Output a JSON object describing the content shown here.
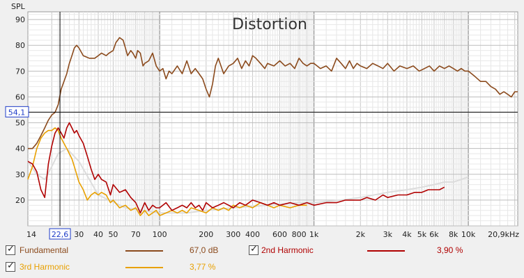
{
  "chart_data": {
    "type": "line",
    "title": "Distortion",
    "ylabel": "SPL",
    "xscale": "log",
    "xlim": [
      14,
      20900
    ],
    "ylim": [
      10,
      93
    ],
    "xticks": [
      {
        "v": 14,
        "label": "14"
      },
      {
        "v": 30,
        "label": "30"
      },
      {
        "v": 40,
        "label": "40"
      },
      {
        "v": 50,
        "label": "50"
      },
      {
        "v": 70,
        "label": "70"
      },
      {
        "v": 100,
        "label": "100"
      },
      {
        "v": 200,
        "label": "200"
      },
      {
        "v": 300,
        "label": "300"
      },
      {
        "v": 400,
        "label": "400"
      },
      {
        "v": 600,
        "label": "600"
      },
      {
        "v": 800,
        "label": "800"
      },
      {
        "v": 1000,
        "label": "1k"
      },
      {
        "v": 2000,
        "label": "2k"
      },
      {
        "v": 3000,
        "label": "3k"
      },
      {
        "v": 4000,
        "label": "4k"
      },
      {
        "v": 5000,
        "label": "5k"
      },
      {
        "v": 6000,
        "label": "6k"
      },
      {
        "v": 8000,
        "label": "8k"
      },
      {
        "v": 10000,
        "label": "10k"
      },
      {
        "v": 20900,
        "label": "20,9kHz"
      }
    ],
    "yticks": [
      20,
      30,
      40,
      50,
      60,
      70,
      80,
      90
    ],
    "cursor": {
      "x": 22.6,
      "y": 54.1,
      "x_label": "22,6",
      "y_label": "54,1"
    },
    "grid": true,
    "series": [
      {
        "name": "Fundamental",
        "color": "#8b4a1c",
        "x": [
          14,
          15,
          16,
          17,
          18,
          19,
          20,
          21,
          22,
          23,
          25,
          26,
          27,
          28,
          29,
          30,
          32,
          35,
          38,
          40,
          42,
          45,
          47,
          50,
          52,
          55,
          58,
          60,
          62,
          65,
          67,
          70,
          72,
          75,
          78,
          80,
          85,
          90,
          95,
          100,
          105,
          110,
          115,
          120,
          130,
          140,
          150,
          160,
          170,
          180,
          190,
          200,
          210,
          220,
          230,
          240,
          260,
          280,
          300,
          320,
          340,
          360,
          380,
          400,
          420,
          450,
          480,
          500,
          550,
          600,
          650,
          700,
          750,
          800,
          850,
          900,
          950,
          1000,
          1100,
          1200,
          1300,
          1400,
          1500,
          1600,
          1700,
          1800,
          1900,
          2000,
          2200,
          2400,
          2600,
          2800,
          3000,
          3300,
          3600,
          4000,
          4400,
          4800,
          5200,
          5600,
          6000,
          6500,
          7000,
          7500,
          8000,
          8500,
          9000,
          9500,
          10000,
          11000,
          12000,
          13000,
          14000,
          15000,
          16000,
          17000,
          18000,
          19000,
          20000,
          20900
        ],
        "y": [
          40,
          40,
          42,
          45,
          48,
          51,
          53,
          54,
          57,
          63,
          69,
          73,
          76,
          79,
          80,
          79,
          76,
          75,
          75,
          76,
          77,
          76,
          77,
          78,
          81,
          83,
          82,
          79,
          76,
          78,
          77,
          75,
          78,
          77,
          72,
          73,
          74,
          77,
          72,
          70,
          71,
          67,
          70,
          69,
          72,
          69,
          74,
          69,
          71,
          69,
          67,
          63,
          60,
          65,
          72,
          75,
          69,
          72,
          73,
          75,
          71,
          74,
          72,
          76,
          75,
          73,
          71,
          73,
          72,
          74,
          72,
          73,
          71,
          75,
          73,
          72,
          73,
          73,
          71,
          72,
          70,
          75,
          73,
          71,
          74,
          71,
          73,
          72,
          71,
          73,
          72,
          71,
          73,
          70,
          72,
          71,
          72,
          70,
          71,
          72,
          70,
          72,
          71,
          72,
          71,
          70,
          71,
          70,
          70,
          68,
          66,
          66,
          64,
          63,
          61,
          62,
          61,
          60,
          62,
          62
        ]
      },
      {
        "name": "2nd Harmonic",
        "color": "#b00000",
        "x": [
          14,
          15,
          16,
          17,
          18,
          19,
          20,
          21,
          22,
          23,
          24,
          25,
          26,
          27,
          28,
          29,
          30,
          32,
          34,
          36,
          38,
          40,
          42,
          45,
          48,
          50,
          55,
          60,
          65,
          70,
          75,
          80,
          85,
          90,
          95,
          100,
          110,
          120,
          130,
          140,
          150,
          160,
          170,
          180,
          190,
          200,
          220,
          240,
          260,
          280,
          300,
          330,
          360,
          400,
          450,
          500,
          550,
          600,
          700,
          800,
          900,
          1000,
          1200,
          1400,
          1600,
          1800,
          2000,
          2200,
          2500,
          2800,
          3000,
          3500,
          4000,
          4500,
          5000,
          5500,
          6000,
          6500,
          7000
        ],
        "y": [
          35,
          34,
          31,
          24,
          21,
          34,
          41,
          46,
          48,
          46,
          44,
          48,
          50,
          48,
          46,
          47,
          45,
          42,
          37,
          32,
          28,
          30,
          28,
          27,
          22,
          26,
          23,
          24,
          21,
          19,
          15,
          19,
          16,
          18,
          17,
          17,
          19,
          16,
          17,
          18,
          17,
          19,
          17,
          18,
          16,
          19,
          17,
          18,
          19,
          18,
          17,
          19,
          18,
          20,
          19,
          18,
          19,
          18,
          19,
          18,
          19,
          18,
          19,
          19,
          20,
          20,
          20,
          21,
          20,
          22,
          21,
          22,
          22,
          23,
          23,
          24,
          24,
          24,
          25
        ]
      },
      {
        "name": "3rd Harmonic",
        "color": "#e8a000",
        "x": [
          14,
          15,
          16,
          17,
          18,
          19,
          20,
          21,
          22,
          23,
          24,
          25,
          26,
          27,
          28,
          29,
          30,
          32,
          34,
          36,
          38,
          40,
          42,
          45,
          48,
          50,
          55,
          60,
          65,
          70,
          75,
          80,
          85,
          90,
          95,
          100,
          110,
          120,
          130,
          140,
          150,
          160,
          180,
          200,
          220,
          240,
          260,
          280,
          300,
          330,
          360,
          400,
          450,
          500,
          550,
          600,
          700,
          800,
          900
        ],
        "y": [
          28,
          33,
          40,
          44,
          46,
          47,
          47,
          48,
          47,
          44,
          42,
          40,
          38,
          36,
          33,
          30,
          27,
          24,
          20,
          22,
          23,
          22,
          23,
          22,
          19,
          20,
          17,
          18,
          16,
          17,
          14,
          16,
          14,
          15,
          16,
          14,
          15,
          16,
          15,
          16,
          15,
          17,
          16,
          15,
          17,
          16,
          17,
          16,
          18,
          17,
          18,
          17,
          19,
          18,
          17,
          18,
          17,
          18,
          18
        ]
      },
      {
        "name": "",
        "color": "#dcdcdc",
        "x": [
          14,
          16,
          18,
          20,
          22,
          25,
          30,
          40,
          60,
          100,
          150,
          200,
          300,
          500,
          800,
          1000,
          1500,
          2000,
          3000,
          4000,
          5000,
          6000,
          7000,
          8000,
          9000,
          10000
        ],
        "y": [
          35,
          30,
          28,
          33,
          38,
          40,
          35,
          22,
          17,
          15,
          15,
          16,
          17,
          18,
          19,
          19,
          20,
          21,
          23,
          24,
          25,
          26,
          27,
          27,
          28,
          29
        ]
      }
    ]
  },
  "legend": [
    {
      "label": "Fundamental",
      "value": "67,0 dB"
    },
    {
      "label": "2nd Harmonic",
      "value": "3,90 %"
    },
    {
      "label": "3rd Harmonic",
      "value": "3,77 %"
    }
  ]
}
